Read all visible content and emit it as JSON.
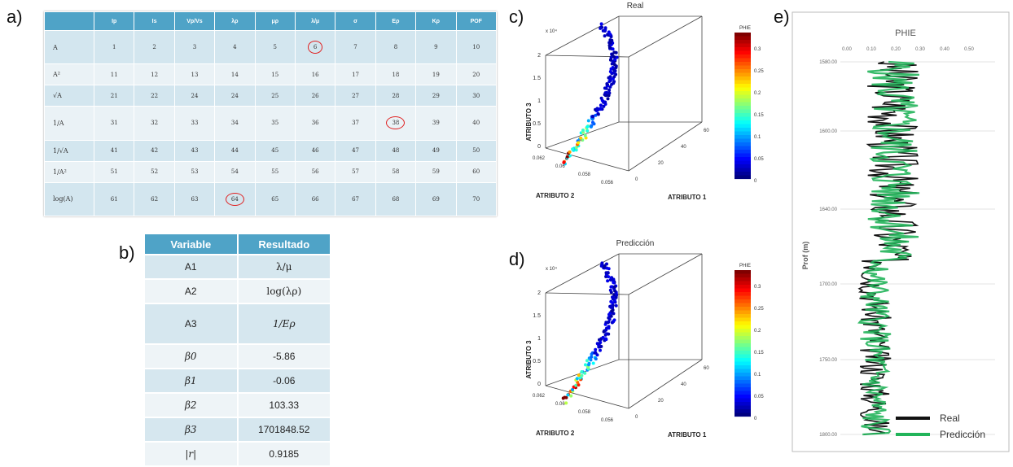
{
  "panel_labels": {
    "a": "a)",
    "b": "b)",
    "c": "c)",
    "d": "d)",
    "e": "e)"
  },
  "table_a": {
    "headers": [
      "",
      "Ip",
      "Is",
      "Vp/Vs",
      "λρ",
      "μρ",
      "λ/μ",
      "σ",
      "Eρ",
      "Kρ",
      "POF"
    ],
    "rows": [
      {
        "label": "A",
        "cells": [
          "1",
          "2",
          "3",
          "4",
          "5",
          "6",
          "7",
          "8",
          "9",
          "10"
        ]
      },
      {
        "label": "A²",
        "cells": [
          "11",
          "12",
          "13",
          "14",
          "15",
          "16",
          "17",
          "18",
          "19",
          "20"
        ]
      },
      {
        "label": "√A",
        "cells": [
          "21",
          "22",
          "24",
          "24",
          "25",
          "26",
          "27",
          "28",
          "29",
          "30"
        ]
      },
      {
        "label": "1/A",
        "cells": [
          "31",
          "32",
          "33",
          "34",
          "35",
          "36",
          "37",
          "38",
          "39",
          "40"
        ]
      },
      {
        "label": "1/√A",
        "cells": [
          "41",
          "42",
          "43",
          "44",
          "45",
          "46",
          "47",
          "48",
          "49",
          "50"
        ]
      },
      {
        "label": "1/A²",
        "cells": [
          "51",
          "52",
          "53",
          "54",
          "55",
          "56",
          "57",
          "58",
          "59",
          "60"
        ]
      },
      {
        "label": "log(A)",
        "cells": [
          "61",
          "62",
          "63",
          "64",
          "65",
          "66",
          "67",
          "68",
          "69",
          "70"
        ]
      }
    ]
  },
  "table_b": {
    "headers": [
      "Variable",
      "Resultado"
    ],
    "rows": [
      {
        "variable": "A1",
        "resultado": "λ/μ"
      },
      {
        "variable": "A2",
        "resultado": "log(λρ)"
      },
      {
        "variable": "A3",
        "resultado": "1/Eρ"
      },
      {
        "variable": "β0",
        "resultado": "-5.86"
      },
      {
        "variable": "β1",
        "resultado": "-0.06"
      },
      {
        "variable": "β2",
        "resultado": "103.33"
      },
      {
        "variable": "β3",
        "resultado": "1701848.52"
      },
      {
        "variable": "|r|",
        "resultado": "0.9185"
      }
    ]
  },
  "panel_c": {
    "title": "Real",
    "zlabel": "ATRIBUTO 3",
    "xlabel": "ATRIBUTO 1",
    "ylabel": "ATRIBUTO 2",
    "zexp": "x 10⁴",
    "zticks": [
      "2",
      "1.5",
      "1",
      "0.5",
      "0"
    ],
    "yticks": [
      "0.062",
      "0.06",
      "0.058",
      "0.056"
    ],
    "xticks": [
      "0",
      "20",
      "40",
      "60"
    ],
    "colorbar_label": "PHIE",
    "colorbar_ticks": [
      "0.3",
      "0.25",
      "0.2",
      "0.15",
      "0.1",
      "0.05",
      "0"
    ]
  },
  "panel_d": {
    "title": "Predicción",
    "zlabel": "ATRIBUTO 3",
    "xlabel": "ATRIBUTO 1",
    "ylabel": "ATRIBUTO 2",
    "zexp": "x 10⁴",
    "zticks": [
      "2",
      "1.5",
      "1",
      "0.5",
      "0"
    ],
    "yticks": [
      "0.062",
      "0.06",
      "0.058",
      "0.056"
    ],
    "xticks": [
      "0",
      "20",
      "40",
      "60"
    ],
    "colorbar_label": "PHIE",
    "colorbar_ticks": [
      "0.3",
      "0.25",
      "0.2",
      "0.15",
      "0.1",
      "0.05",
      "0"
    ]
  },
  "panel_e": {
    "title": "PHIE",
    "ylabel": "Prof (m)",
    "xticks": [
      "0.00",
      "0.10",
      "0.20",
      "0.30",
      "0.40",
      "0.50"
    ],
    "yticks": [
      "1580.00",
      "1600.00",
      "1640.00",
      "1700.00",
      "1750.00",
      "1800.00"
    ],
    "legend": [
      {
        "name": "Real",
        "color": "#111111"
      },
      {
        "name": "Predicción",
        "color": "#22b45a"
      }
    ]
  }
}
